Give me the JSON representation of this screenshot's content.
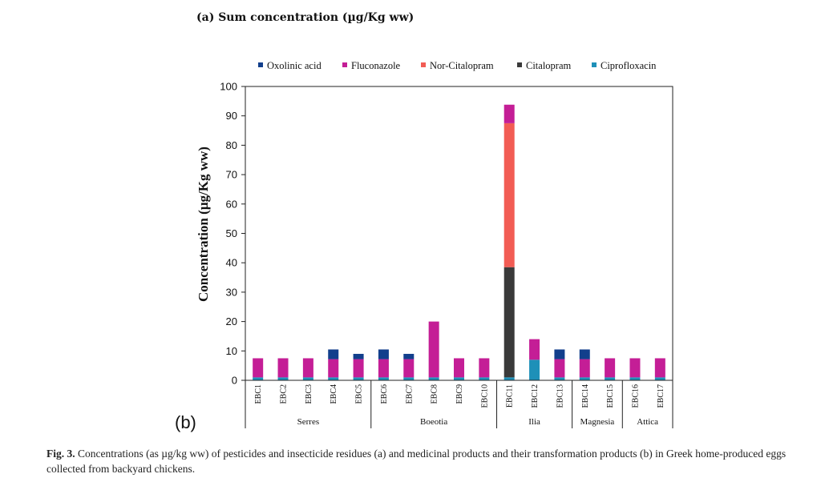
{
  "page": {
    "panel_title": "(a) Sum concentration (µg/Kg ww)",
    "panel_label": "(b)",
    "caption_fig": "Fig. 3.",
    "caption_text": "Concentrations (as µg/kg ww) of pesticides and insecticide residues (a) and medicinal products and their transformation products (b) in Greek home-produced eggs collected from backyard chickens."
  },
  "chart_data": {
    "type": "bar",
    "stacked": true,
    "ylabel": "Concentration  (µg/Kg ww)",
    "ylim": [
      0,
      100
    ],
    "yticks": [
      0,
      10,
      20,
      30,
      40,
      50,
      60,
      70,
      80,
      90,
      100
    ],
    "legend_position": "top",
    "categories": [
      "EBC1",
      "EBC2",
      "EBC3",
      "EBC4",
      "EBC5",
      "EBC6",
      "EBC7",
      "EBC8",
      "EBC9",
      "EBC10",
      "EBC11",
      "EBC12",
      "EBC13",
      "EBC14",
      "EBC15",
      "EBC16",
      "EBC17"
    ],
    "groups": [
      {
        "name": "Serres",
        "count": 5
      },
      {
        "name": "Boeotia",
        "count": 5
      },
      {
        "name": "Ilia",
        "count": 3
      },
      {
        "name": "Magnesia",
        "count": 2
      },
      {
        "name": "Attica",
        "count": 2
      }
    ],
    "series": [
      {
        "name": "Ciprofloxacin",
        "color": "#1e90b8",
        "values": [
          1,
          1,
          1,
          1,
          1,
          1,
          1,
          1,
          1,
          1,
          1,
          7,
          1,
          1,
          1,
          1,
          1
        ]
      },
      {
        "name": "Citalopram",
        "color": "#3a3a3a",
        "values": [
          0,
          0,
          0,
          0,
          0,
          0,
          0,
          0,
          0,
          0,
          37.5,
          0,
          0,
          0,
          0,
          0,
          0
        ]
      },
      {
        "name": "Nor-Citalopram",
        "color": "#f25c54",
        "values": [
          0,
          0,
          0,
          0,
          0,
          0,
          0,
          0,
          0,
          0,
          49,
          0,
          0,
          0,
          0,
          0,
          0
        ]
      },
      {
        "name": "Fluconazole",
        "color": "#c41e96",
        "values": [
          6.5,
          6.5,
          6.5,
          6.2,
          6.2,
          6.2,
          6.2,
          19,
          6.5,
          6.5,
          6.3,
          7,
          6.2,
          6.2,
          6.5,
          6.5,
          6.5
        ]
      },
      {
        "name": "Oxolinic acid",
        "color": "#123f8c",
        "values": [
          0,
          0,
          0,
          3.3,
          1.8,
          3.3,
          1.8,
          0,
          0,
          0,
          0,
          0,
          3.3,
          3.3,
          0,
          0,
          0
        ]
      }
    ],
    "legend_order": [
      "Oxolinic acid",
      "Fluconazole",
      "Nor-Citalopram",
      "Citalopram",
      "Ciprofloxacin"
    ]
  }
}
